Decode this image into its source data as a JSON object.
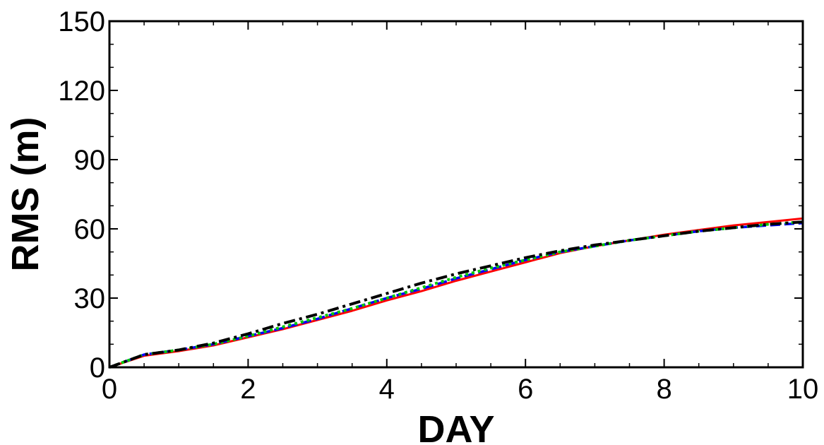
{
  "chart_data": {
    "type": "line",
    "title": "",
    "xlabel": "DAY",
    "ylabel": "RMS (m)",
    "xlim": [
      0,
      10
    ],
    "ylim": [
      0,
      150
    ],
    "x_ticks": [
      0,
      2,
      4,
      6,
      8,
      10
    ],
    "y_ticks": [
      0,
      30,
      60,
      90,
      120,
      150
    ],
    "grid": false,
    "legend": "none",
    "series": [
      {
        "color": "#ff0000",
        "style": "solid",
        "x": [
          0,
          0.5,
          1,
          1.5,
          2,
          2.5,
          3,
          3.5,
          4,
          4.5,
          5,
          5.5,
          6,
          6.5,
          7,
          7.5,
          8,
          8.5,
          9,
          9.5,
          10
        ],
        "y": [
          0,
          5,
          7,
          9.5,
          13,
          16.5,
          20.5,
          24.5,
          29,
          33,
          37.5,
          41.5,
          45.5,
          49.5,
          52.5,
          55,
          57.5,
          59.5,
          61.5,
          63,
          64.5
        ]
      },
      {
        "color": "#0000ff",
        "style": "dashed",
        "x": [
          0,
          0.5,
          1,
          1.5,
          2,
          2.5,
          3,
          3.5,
          4,
          4.5,
          5,
          5.5,
          6,
          6.5,
          7,
          7.5,
          8,
          8.5,
          9,
          9.5,
          10
        ],
        "y": [
          0,
          5.5,
          7.5,
          10,
          13.5,
          17,
          21,
          25.5,
          30,
          34,
          38.5,
          42.5,
          46.5,
          50,
          52.5,
          55,
          57,
          59,
          60.5,
          61.5,
          62.5
        ]
      },
      {
        "color": "#00cc00",
        "style": "dotted",
        "x": [
          0,
          0.5,
          1,
          1.5,
          2,
          2.5,
          3,
          3.5,
          4,
          4.5,
          5,
          5.5,
          6,
          6.5,
          7,
          7.5,
          8,
          8.5,
          9,
          9.5,
          10
        ],
        "y": [
          0,
          5.5,
          7.5,
          10,
          13.5,
          17.5,
          21.5,
          25.5,
          30,
          34.5,
          39,
          43,
          46.5,
          50,
          52.5,
          55,
          57,
          59,
          60.5,
          62,
          63
        ]
      },
      {
        "color": "#000000",
        "style": "dashdot",
        "x": [
          0,
          0.5,
          1,
          1.5,
          2,
          2.5,
          3,
          3.5,
          4,
          4.5,
          5,
          5.5,
          6,
          6.5,
          7,
          7.5,
          8,
          8.5,
          9,
          9.5,
          10
        ],
        "y": [
          0,
          5.5,
          7.5,
          10.5,
          14.5,
          19,
          23,
          27.5,
          32,
          36.5,
          40.5,
          44,
          47.5,
          50.5,
          53,
          55,
          57,
          59,
          60.5,
          62,
          63
        ]
      }
    ]
  }
}
